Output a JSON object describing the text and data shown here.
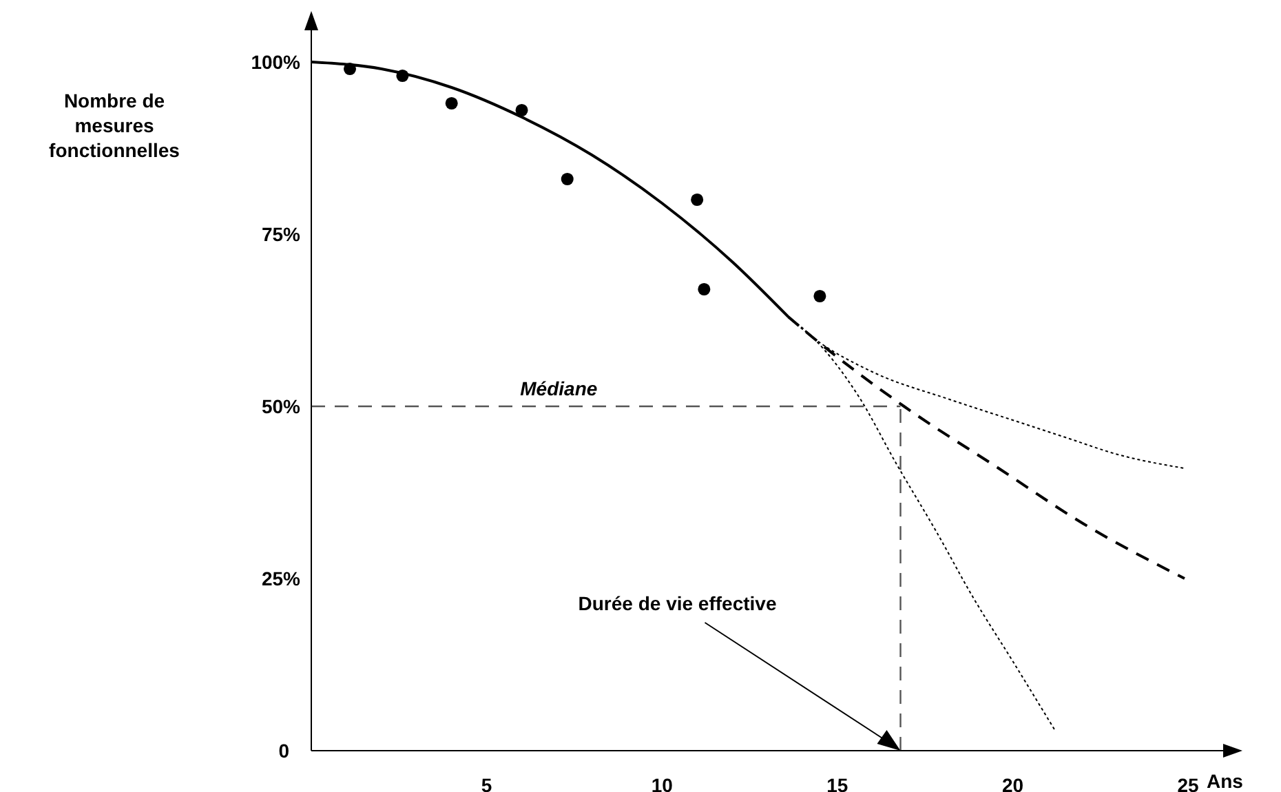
{
  "chart_data": {
    "type": "line",
    "xlabel": "Ans",
    "ylabel": "Nombre de\nmesures\nfonctionnelles",
    "xlim": [
      0,
      26
    ],
    "xticks": [
      5,
      10,
      15,
      20,
      25
    ],
    "ylim": [
      0,
      107
    ],
    "yticks": [
      {
        "value": 0,
        "label": "0"
      },
      {
        "value": 25,
        "label": "25%"
      },
      {
        "value": 50,
        "label": "50%"
      },
      {
        "value": 75,
        "label": "75%"
      },
      {
        "value": 100,
        "label": "100%"
      }
    ],
    "grid": false,
    "legend": false,
    "series": [
      {
        "type": "scatter",
        "color": "#000000",
        "marker": "circle",
        "x": [
          1.1,
          2.6,
          4.0,
          6.0,
          7.3,
          11.0,
          11.2,
          14.5
        ],
        "values": [
          99,
          98,
          94,
          93,
          83,
          80,
          67,
          66
        ]
      },
      {
        "color": "#000000",
        "marker": "none",
        "line_style": "solid",
        "x": [
          0,
          2,
          4,
          6,
          8,
          10,
          12,
          13.6
        ],
        "values": [
          100,
          99,
          96.3,
          92,
          86.5,
          79.5,
          71,
          63
        ]
      },
      {
        "color": "#000000",
        "marker": "none",
        "line_style": "dotted",
        "x": [
          13.6,
          14.3,
          16,
          18.2,
          20,
          21.5,
          23,
          24.9
        ],
        "values": [
          63,
          60,
          55,
          51,
          48,
          45.5,
          43,
          41
        ]
      },
      {
        "color": "#000000",
        "marker": "none",
        "line_style": "dashed",
        "x": [
          13.6,
          14.3,
          16.9,
          19.6,
          22,
          24.9
        ],
        "values": [
          63,
          60,
          50,
          41,
          33,
          25
        ]
      },
      {
        "color": "#000000",
        "marker": "none",
        "line_style": "dotted",
        "x": [
          13.6,
          14.3,
          15.6,
          16.7,
          17.8,
          18.9,
          20,
          21.2
        ],
        "values": [
          63,
          60,
          51.5,
          41.5,
          32,
          22,
          13,
          3
        ]
      }
    ],
    "ref_lines": [
      {
        "axis": "y",
        "value": 50,
        "label": "Médiane",
        "color": "#555555",
        "line_style": "dashed"
      },
      {
        "axis": "x",
        "value": 16.8,
        "label": null,
        "color": "#555555",
        "line_style": "dashed"
      }
    ],
    "annotations": [
      "Durée de vie effective"
    ]
  }
}
